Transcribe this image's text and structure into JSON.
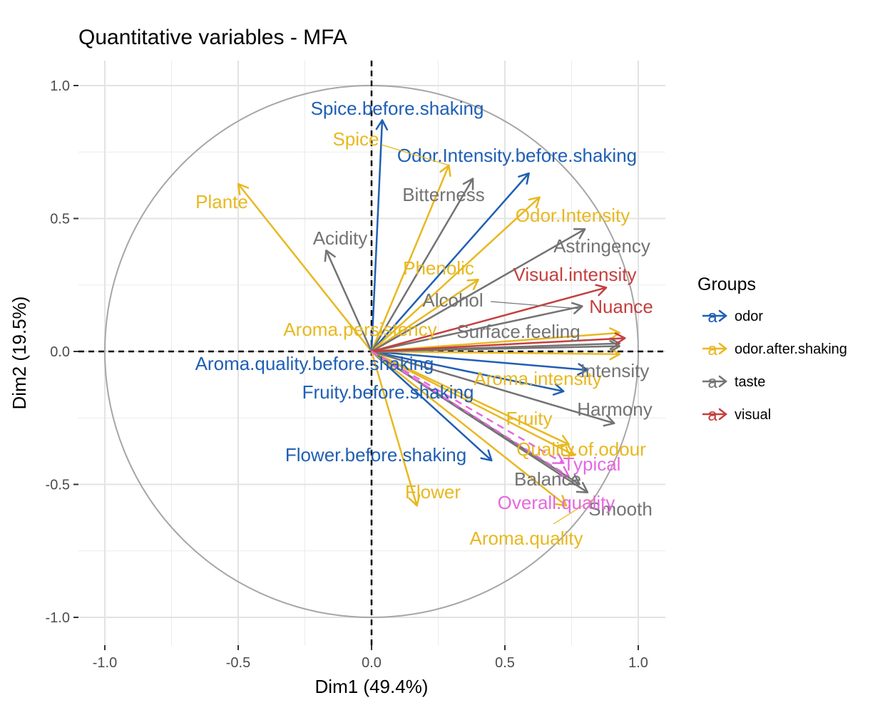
{
  "chart_data": {
    "type": "scatter",
    "title": "Quantitative variables - MFA",
    "xlabel": "Dim1 (49.4%)",
    "ylabel": "Dim2 (19.5%)",
    "xlim": [
      -1.0,
      1.0
    ],
    "ylim": [
      -1.0,
      1.0
    ],
    "x_ticks": [
      "-1.0",
      "-0.5",
      "0.0",
      "0.5",
      "1.0"
    ],
    "y_ticks": [
      "1.0",
      "0.5",
      "0.0",
      "-0.5",
      "-1.0"
    ],
    "grid": true,
    "correlation_circle": true,
    "legend": {
      "title": "Groups",
      "position": "right",
      "key_glyph": "a",
      "entries": [
        {
          "name": "odor",
          "color": "#1f5fb4"
        },
        {
          "name": "odor.after.shaking",
          "color": "#e8b820"
        },
        {
          "name": "taste",
          "color": "#737373"
        },
        {
          "name": "visual",
          "color": "#c43f3f"
        }
      ]
    },
    "supplementary_color": "#e668e0",
    "variables": [
      {
        "name": "Spice.before.shaking",
        "group": "odor",
        "x": 0.04,
        "y": 0.87
      },
      {
        "name": "Odor.Intensity.before.shaking",
        "group": "odor",
        "x": 0.59,
        "y": 0.67
      },
      {
        "name": "Aroma.quality.before.shaking",
        "group": "odor",
        "x": 0.81,
        "y": -0.07
      },
      {
        "name": "Fruity.before.shaking",
        "group": "odor",
        "x": 0.72,
        "y": -0.15
      },
      {
        "name": "Flower.before.shaking",
        "group": "odor",
        "x": 0.45,
        "y": -0.41
      },
      {
        "name": "Spice",
        "group": "odor.after.shaking",
        "x": 0.29,
        "y": 0.7
      },
      {
        "name": "Plante",
        "group": "odor.after.shaking",
        "x": -0.5,
        "y": 0.63
      },
      {
        "name": "Odor.Intensity",
        "group": "odor.after.shaking",
        "x": 0.63,
        "y": 0.58
      },
      {
        "name": "Phenolic",
        "group": "odor.after.shaking",
        "x": 0.4,
        "y": 0.27
      },
      {
        "name": "Aroma.persistency",
        "group": "odor.after.shaking",
        "x": 0.93,
        "y": 0.07
      },
      {
        "name": "Aroma.intensity",
        "group": "odor.after.shaking",
        "x": 0.93,
        "y": -0.01
      },
      {
        "name": "Fruity",
        "group": "odor.after.shaking",
        "x": 0.74,
        "y": -0.35
      },
      {
        "name": "Quality.of.odour",
        "group": "odor.after.shaking",
        "x": 0.76,
        "y": -0.39
      },
      {
        "name": "Aroma.quality",
        "group": "odor.after.shaking",
        "x": 0.73,
        "y": -0.58
      },
      {
        "name": "Flower",
        "group": "odor.after.shaking",
        "x": 0.17,
        "y": -0.58
      },
      {
        "name": "Bitterness",
        "group": "taste",
        "x": 0.38,
        "y": 0.65
      },
      {
        "name": "Acidity",
        "group": "taste",
        "x": -0.17,
        "y": 0.38
      },
      {
        "name": "Astringency",
        "group": "taste",
        "x": 0.8,
        "y": 0.46
      },
      {
        "name": "Alcohol",
        "group": "taste",
        "x": 0.79,
        "y": 0.17
      },
      {
        "name": "Intensity",
        "group": "taste",
        "x": 0.93,
        "y": 0.02
      },
      {
        "name": "Harmony",
        "group": "taste",
        "x": 0.91,
        "y": -0.27
      },
      {
        "name": "Balance",
        "group": "taste",
        "x": 0.78,
        "y": -0.5
      },
      {
        "name": "Smooth",
        "group": "taste",
        "x": 0.81,
        "y": -0.53
      },
      {
        "name": "Surface.feeling",
        "group": "taste",
        "x": 0.93,
        "y": 0.03
      },
      {
        "name": "Visual.intensity",
        "group": "visual",
        "x": 0.88,
        "y": 0.24
      },
      {
        "name": "Nuance",
        "group": "visual",
        "x": 0.95,
        "y": 0.05
      },
      {
        "name": "Overall.quality",
        "group": "supplementary",
        "x": 0.74,
        "y": -0.47,
        "dashed": true
      },
      {
        "name": "Typical",
        "group": "supplementary",
        "x": 0.72,
        "y": -0.42,
        "dashed": true
      }
    ]
  }
}
